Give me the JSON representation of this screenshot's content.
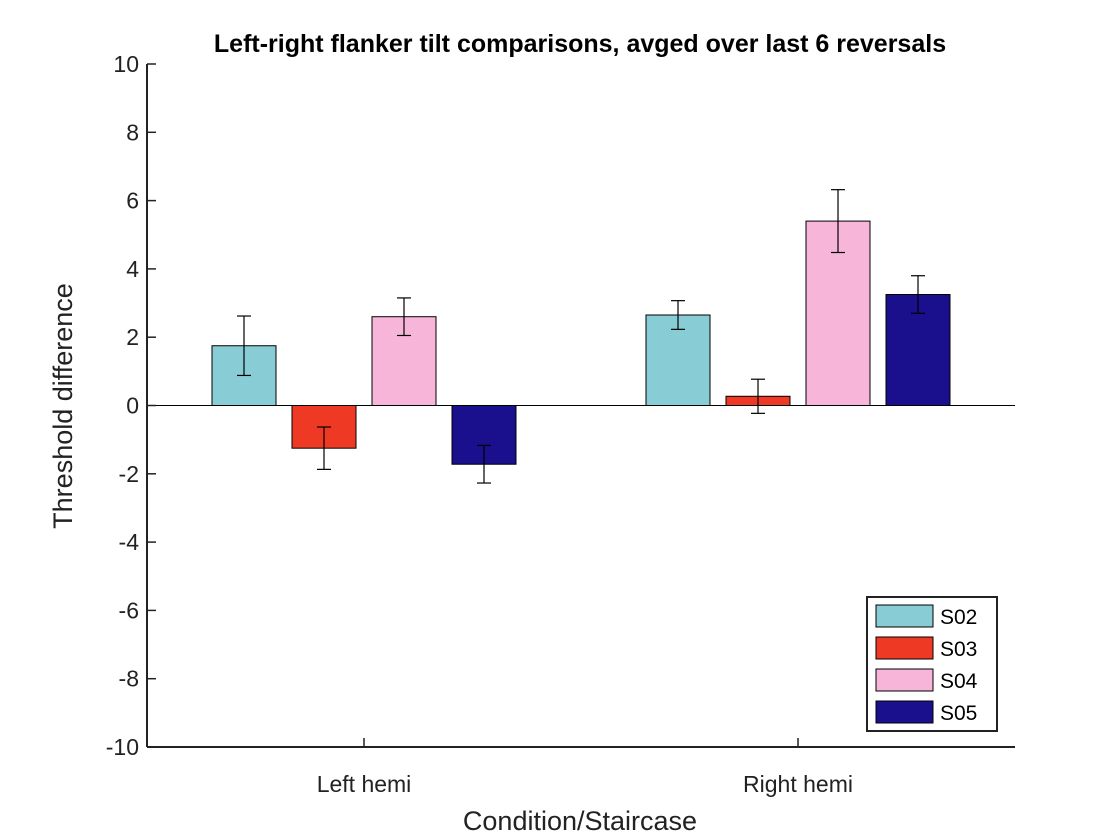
{
  "chart_data": {
    "type": "bar",
    "title": "Left-right flanker tilt comparisons, avged over last 6 reversals",
    "xlabel": "Condition/Staircase",
    "ylabel": "Threshold difference",
    "categories": [
      "Left hemi",
      "Right hemi"
    ],
    "ylim": [
      -10,
      10
    ],
    "yticks": [
      -10,
      -8,
      -6,
      -4,
      -2,
      0,
      2,
      4,
      6,
      8,
      10
    ],
    "grid": false,
    "legend_position": "bottom-right",
    "series": [
      {
        "name": "S02",
        "color": "#88ccd6",
        "values": [
          1.75,
          2.65
        ],
        "errors": [
          0.87,
          0.42
        ]
      },
      {
        "name": "S03",
        "color": "#ee3a24",
        "values": [
          -1.25,
          0.27
        ],
        "errors": [
          0.62,
          0.5
        ]
      },
      {
        "name": "S04",
        "color": "#f8b5da",
        "values": [
          2.6,
          5.4
        ],
        "errors": [
          0.55,
          0.92
        ]
      },
      {
        "name": "S05",
        "color": "#1a0f8c",
        "values": [
          -1.72,
          3.25
        ],
        "errors": [
          0.55,
          0.55
        ]
      }
    ]
  }
}
